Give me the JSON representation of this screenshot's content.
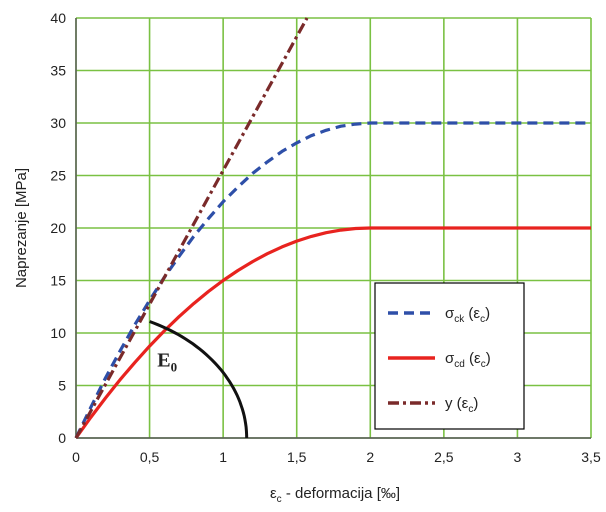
{
  "chart_data": {
    "type": "line",
    "xlabel": {
      "main": "ε",
      "sub": "c",
      "rest": " - deformacija [‰]"
    },
    "ylabel": "Naprezanje [MPa]",
    "xlim": [
      0,
      3.5
    ],
    "ylim": [
      0,
      40
    ],
    "x_ticks": [
      0,
      0.5,
      1,
      1.5,
      2,
      2.5,
      3,
      3.5
    ],
    "x_tick_labels": [
      "0",
      "0,5",
      "1",
      "1,5",
      "2",
      "2,5",
      "3",
      "3,5"
    ],
    "y_ticks": [
      0,
      5,
      10,
      15,
      20,
      25,
      30,
      35,
      40
    ],
    "y_tick_labels": [
      "0",
      "5",
      "10",
      "15",
      "20",
      "25",
      "30",
      "35",
      "40"
    ],
    "grid": true,
    "legend_position": "bottom-right",
    "series": [
      {
        "name": "σck (εc)",
        "label_parts": {
          "main": "σ",
          "sub": "ck",
          "open": " (ε",
          "sub2": "c",
          "close": ")"
        },
        "color": "#2e4fa8",
        "style": "dashed",
        "x": [
          0,
          0.1,
          0.2,
          0.3,
          0.4,
          0.5,
          0.6,
          0.7,
          0.8,
          0.9,
          1.0,
          1.1,
          1.2,
          1.3,
          1.4,
          1.5,
          1.6,
          1.7,
          1.8,
          1.9,
          2.0,
          2.5,
          3.0,
          3.5
        ],
        "y": [
          0,
          2.9,
          5.7,
          8.3,
          10.8,
          13.1,
          15.3,
          17.3,
          19.2,
          20.9,
          22.5,
          23.9,
          25.2,
          26.3,
          27.3,
          28.1,
          28.8,
          29.3,
          29.7,
          29.9,
          30.0,
          30.0,
          30.0,
          30.0
        ]
      },
      {
        "name": "σcd (εc)",
        "label_parts": {
          "main": "σ",
          "sub": "cd",
          "open": " (ε",
          "sub2": "c",
          "close": ")"
        },
        "color": "#e8231f",
        "style": "solid",
        "x": [
          0,
          0.1,
          0.2,
          0.3,
          0.4,
          0.5,
          0.6,
          0.7,
          0.8,
          0.9,
          1.0,
          1.1,
          1.2,
          1.3,
          1.4,
          1.5,
          1.6,
          1.7,
          1.8,
          1.9,
          2.0,
          2.5,
          3.0,
          3.5
        ],
        "y": [
          0,
          1.95,
          3.8,
          5.55,
          7.2,
          8.75,
          10.2,
          11.55,
          12.8,
          13.95,
          15.0,
          15.95,
          16.8,
          17.55,
          18.2,
          18.75,
          19.2,
          19.55,
          19.8,
          19.95,
          20.0,
          20.0,
          20.0,
          20.0
        ]
      },
      {
        "name": "y (εc)",
        "label_parts": {
          "main": "y",
          "sub": "",
          "open": " (ε",
          "sub2": "c",
          "close": ")"
        },
        "color": "#7a2a2a",
        "style": "dashdot",
        "x": [
          0,
          1.57
        ],
        "y": [
          0,
          40
        ]
      }
    ],
    "annotations": [
      {
        "label": "E0",
        "label_parts": {
          "main": "E",
          "sub": "0"
        },
        "anchor": [
          0.62,
          6.8
        ],
        "arc": {
          "center": [
            0,
            0
          ],
          "from": [
            0.5,
            12.3
          ],
          "to": [
            1.16,
            0
          ],
          "color": "#111111"
        }
      }
    ]
  }
}
